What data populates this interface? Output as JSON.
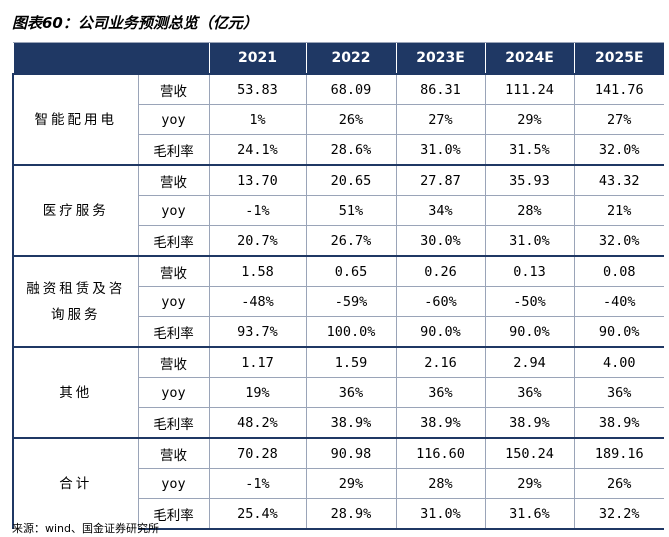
{
  "title": "图表60：公司业务预测总览（亿元）",
  "table": {
    "columns": [
      "2021",
      "2022",
      "2023E",
      "2024E",
      "2025E"
    ],
    "groups": [
      {
        "name": "智能配用电",
        "rows": [
          {
            "metric": "营收",
            "values": [
              "53.83",
              "68.09",
              "86.31",
              "111.24",
              "141.76"
            ]
          },
          {
            "metric": "yoy",
            "values": [
              "1%",
              "26%",
              "27%",
              "29%",
              "27%"
            ]
          },
          {
            "metric": "毛利率",
            "values": [
              "24.1%",
              "28.6%",
              "31.0%",
              "31.5%",
              "32.0%"
            ]
          }
        ]
      },
      {
        "name": "医疗服务",
        "rows": [
          {
            "metric": "营收",
            "values": [
              "13.70",
              "20.65",
              "27.87",
              "35.93",
              "43.32"
            ]
          },
          {
            "metric": "yoy",
            "values": [
              "-1%",
              "51%",
              "34%",
              "28%",
              "21%"
            ]
          },
          {
            "metric": "毛利率",
            "values": [
              "20.7%",
              "26.7%",
              "30.0%",
              "31.0%",
              "32.0%"
            ]
          }
        ]
      },
      {
        "name": "融资租赁及咨询服务",
        "rows": [
          {
            "metric": "营收",
            "values": [
              "1.58",
              "0.65",
              "0.26",
              "0.13",
              "0.08"
            ]
          },
          {
            "metric": "yoy",
            "values": [
              "-48%",
              "-59%",
              "-60%",
              "-50%",
              "-40%"
            ]
          },
          {
            "metric": "毛利率",
            "values": [
              "93.7%",
              "100.0%",
              "90.0%",
              "90.0%",
              "90.0%"
            ]
          }
        ]
      },
      {
        "name": "其他",
        "rows": [
          {
            "metric": "营收",
            "values": [
              "1.17",
              "1.59",
              "2.16",
              "2.94",
              "4.00"
            ]
          },
          {
            "metric": "yoy",
            "values": [
              "19%",
              "36%",
              "36%",
              "36%",
              "36%"
            ]
          },
          {
            "metric": "毛利率",
            "values": [
              "48.2%",
              "38.9%",
              "38.9%",
              "38.9%",
              "38.9%"
            ]
          }
        ]
      },
      {
        "name": "合计",
        "rows": [
          {
            "metric": "营收",
            "values": [
              "70.28",
              "90.98",
              "116.60",
              "150.24",
              "189.16"
            ]
          },
          {
            "metric": "yoy",
            "values": [
              "-1%",
              "29%",
              "28%",
              "29%",
              "26%"
            ]
          },
          {
            "metric": "毛利率",
            "values": [
              "25.4%",
              "28.9%",
              "31.0%",
              "31.6%",
              "32.2%"
            ]
          }
        ]
      }
    ]
  },
  "source": "来源：wind、国金证券研究所"
}
